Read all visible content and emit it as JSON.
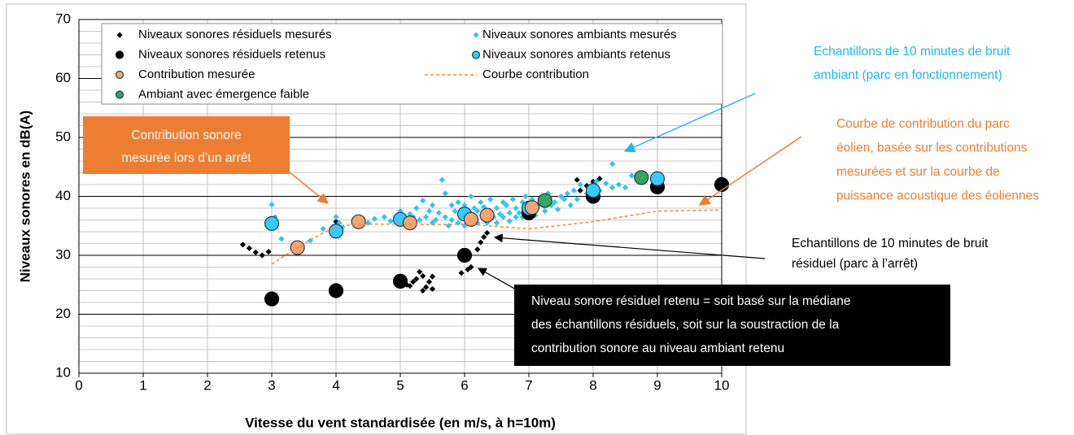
{
  "chart_data": {
    "type": "scatter",
    "x_label": "Vitesse du vent standardisée (en m/s, à h=10m)",
    "y_label": "Niveaux sonores en dB(A)",
    "xlim": [
      0,
      10
    ],
    "xticks": [
      0,
      1,
      2,
      3,
      4,
      5,
      6,
      7,
      8,
      9,
      10
    ],
    "ylim": [
      10,
      70
    ],
    "yticks": [
      10,
      20,
      30,
      40,
      50,
      60,
      70
    ],
    "grid": true,
    "minor_grid_step": 2,
    "legend": "top",
    "series": [
      {
        "name": "Niveaux sonores résiduels mesurés",
        "color": "#000000",
        "marker": "diamond",
        "x": [
          2.55,
          2.65,
          2.75,
          2.85,
          2.95,
          4.0,
          5.1,
          5.15,
          5.2,
          5.25,
          5.3,
          5.35,
          5.35,
          5.4,
          5.45,
          5.5,
          5.5,
          5.95,
          6.05,
          6.1,
          6.2,
          6.25,
          6.3,
          6.35,
          6.95,
          7.0,
          7.1,
          7.75,
          7.8,
          7.9,
          7.95,
          8.0,
          8.05,
          8.1
        ],
        "values": [
          31.8,
          31.2,
          30.5,
          30,
          30.6,
          35.7,
          25,
          24.8,
          25.5,
          26,
          27.2,
          26.5,
          24,
          24.6,
          25.5,
          24.3,
          26.4,
          27,
          27.6,
          28,
          31,
          32.2,
          33.1,
          33.8,
          37.5,
          37.9,
          38.5,
          42.8,
          41,
          41.8,
          40.8,
          42.5,
          40.5,
          43
        ]
      },
      {
        "name": "Niveaux sonores ambiants mesurés",
        "color": "#2ec5f2",
        "marker": "diamond",
        "x": [
          3.0,
          3.05,
          3.15,
          3.6,
          3.8,
          4.0,
          4.05,
          4.1,
          4.3,
          4.5,
          4.6,
          4.75,
          4.85,
          4.95,
          5.0,
          5.05,
          5.1,
          5.15,
          5.2,
          5.25,
          5.3,
          5.35,
          5.4,
          5.45,
          5.5,
          5.5,
          5.55,
          5.6,
          5.65,
          5.7,
          5.7,
          5.75,
          5.8,
          5.8,
          5.85,
          5.9,
          5.9,
          5.95,
          6.0,
          6.0,
          6.05,
          6.1,
          6.1,
          6.15,
          6.2,
          6.2,
          6.25,
          6.3,
          6.3,
          6.35,
          6.4,
          6.4,
          6.45,
          6.5,
          6.5,
          6.55,
          6.6,
          6.6,
          6.65,
          6.7,
          6.7,
          6.75,
          6.8,
          6.8,
          6.85,
          6.9,
          6.9,
          6.95,
          7.0,
          7.05,
          7.1,
          7.15,
          7.2,
          7.25,
          7.3,
          7.35,
          7.4,
          7.45,
          7.5,
          7.55,
          7.6,
          7.65,
          7.7,
          7.75,
          7.8,
          7.9,
          8.0,
          8.05,
          8.1,
          8.2,
          8.3,
          8.3,
          8.4,
          8.5,
          8.6,
          8.7,
          8.8
        ],
        "values": [
          38.6,
          36.5,
          32.8,
          32.5,
          34.5,
          36.5,
          35.5,
          34.8,
          36,
          35.5,
          36.2,
          36.5,
          35.8,
          36.5,
          37.5,
          35.5,
          36.2,
          37,
          36.5,
          38,
          36,
          39.3,
          36.5,
          37.5,
          35.5,
          38.5,
          36,
          37.2,
          42.8,
          40.5,
          36.5,
          35,
          38.5,
          36,
          37.5,
          35.5,
          39,
          36.5,
          38.5,
          35,
          37,
          40,
          36,
          38,
          35.5,
          37.5,
          39,
          36.5,
          38.2,
          35.5,
          37.5,
          39.5,
          36.5,
          38,
          35.5,
          37,
          39,
          36.5,
          38.5,
          37.2,
          35.8,
          39.5,
          36.5,
          38,
          37.2,
          39,
          36.5,
          40,
          37.5,
          39.5,
          36.8,
          38.5,
          39.8,
          37.5,
          40.5,
          38.5,
          39,
          37.8,
          40,
          39.5,
          40.5,
          38.5,
          41,
          39.5,
          42,
          40.5,
          41.5,
          42.5,
          41,
          42.2,
          41.5,
          45.5,
          42,
          41.5,
          43.5,
          43.8,
          42.5
        ]
      },
      {
        "name": "Niveaux sonores résiduels retenus",
        "color": "#000000",
        "marker": "circle",
        "x": [
          3,
          4,
          5,
          6,
          7,
          8,
          9,
          10
        ],
        "values": [
          22.6,
          24,
          25.6,
          30,
          37.2,
          40,
          41.6,
          42
        ]
      },
      {
        "name": "Niveaux sonores ambiants retenus",
        "color": "#33ccff",
        "marker": "circle",
        "x": [
          3,
          4,
          5,
          6,
          7,
          8,
          9
        ],
        "values": [
          35.4,
          34.1,
          36.1,
          37,
          38,
          41,
          43
        ]
      },
      {
        "name": "Contribution mesurée",
        "color": "#f4a46c",
        "marker": "circle",
        "x": [
          3.4,
          4.35,
          5.15,
          6.1,
          6.35,
          7.05
        ],
        "values": [
          31.3,
          35.7,
          35.5,
          36.1,
          36.8,
          38.1
        ]
      },
      {
        "name": "Courbe contribution",
        "color": "#f08a3c",
        "marker": "dashed-line",
        "x": [
          3,
          3.5,
          4,
          4.5,
          5,
          5.5,
          6,
          7,
          8,
          9,
          10
        ],
        "values": [
          28.5,
          32,
          35,
          35.3,
          35.3,
          35.2,
          35.3,
          34.5,
          35.7,
          37.5,
          37.7
        ]
      },
      {
        "name": "Ambiant avec émergence faible",
        "color": "#3aa35c",
        "marker": "circle",
        "x": [
          7.25,
          8.75
        ],
        "values": [
          39.3,
          43.2
        ]
      }
    ],
    "annotations": [
      {
        "lines": [
          "Echantillons de 10 minutes de bruit",
          "ambiant (parc en fonctionnement)"
        ],
        "color": "#1fb8ec"
      },
      {
        "lines": [
          "Courbe de contribution du parc",
          "éolien, basée sur les contributions",
          "mesurées et sur la courbe de",
          "puissance acoustique des éoliennes"
        ],
        "color": "#ed7d31"
      },
      {
        "lines": [
          "Contribution sonore",
          "mesurée lors d’un arrêt"
        ],
        "color": "#ffffff"
      },
      {
        "lines": [
          "Echantillons de 10 minutes de bruit",
          "résiduel (parc à l’arrêt)"
        ],
        "color": "#000000"
      },
      {
        "lines": [
          "Niveau sonore résiduel retenu = soit basé sur la médiane",
          "des échantillons résiduels, soit sur la soustraction de la",
          "contribution sonore au niveau ambiant retenu"
        ],
        "color": "#ffffff"
      }
    ]
  }
}
